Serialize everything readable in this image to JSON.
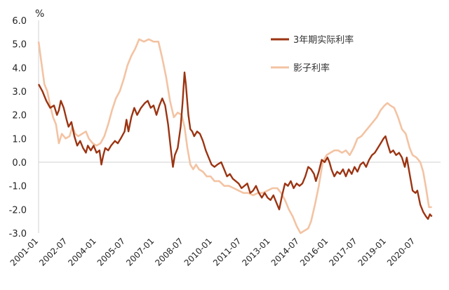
{
  "chart_data": {
    "type": "line",
    "y_unit": "%",
    "ylim": [
      -3.0,
      6.0
    ],
    "y_ticks": [
      "6.0",
      "5.0",
      "4.0",
      "3.0",
      "2.0",
      "1.0",
      "0.0",
      "-1.0",
      "-2.0",
      "-3.0"
    ],
    "y_tick_values": [
      6,
      5,
      4,
      3,
      2,
      1,
      0,
      -1,
      -2,
      -3
    ],
    "x_ticks": [
      "2001-01",
      "2002-07",
      "2004-01",
      "2005-07",
      "2007-01",
      "2008-07",
      "2010-01",
      "2011-07",
      "2013-01",
      "2014-07",
      "2016-01",
      "2017-07",
      "2019-01",
      "2020-07"
    ],
    "x_tick_values": [
      2001.0,
      2002.5,
      2004.0,
      2005.5,
      2007.0,
      2008.5,
      2010.0,
      2011.5,
      2013.0,
      2014.5,
      2016.0,
      2017.5,
      2019.0,
      2020.5
    ],
    "xlim": [
      2001.0,
      2021.8
    ],
    "grid": false,
    "legend_position": "top-right",
    "series": [
      {
        "name": "3年期实际利率",
        "color": "#9b3412",
        "points": [
          [
            2001.0,
            3.3
          ],
          [
            2001.2,
            3.0
          ],
          [
            2001.4,
            2.6
          ],
          [
            2001.6,
            2.3
          ],
          [
            2001.8,
            2.4
          ],
          [
            2001.95,
            2.0
          ],
          [
            2002.05,
            2.2
          ],
          [
            2002.15,
            2.6
          ],
          [
            2002.3,
            2.3
          ],
          [
            2002.45,
            1.8
          ],
          [
            2002.55,
            1.5
          ],
          [
            2002.7,
            1.7
          ],
          [
            2002.85,
            1.1
          ],
          [
            2003.0,
            0.7
          ],
          [
            2003.15,
            0.9
          ],
          [
            2003.3,
            0.6
          ],
          [
            2003.45,
            0.4
          ],
          [
            2003.55,
            0.7
          ],
          [
            2003.7,
            0.5
          ],
          [
            2003.85,
            0.7
          ],
          [
            2004.0,
            0.4
          ],
          [
            2004.15,
            0.5
          ],
          [
            2004.25,
            -0.1
          ],
          [
            2004.35,
            0.3
          ],
          [
            2004.45,
            0.6
          ],
          [
            2004.6,
            0.5
          ],
          [
            2004.75,
            0.7
          ],
          [
            2004.95,
            0.9
          ],
          [
            2005.1,
            0.8
          ],
          [
            2005.25,
            1.0
          ],
          [
            2005.45,
            1.3
          ],
          [
            2005.55,
            1.8
          ],
          [
            2005.65,
            1.3
          ],
          [
            2005.8,
            1.9
          ],
          [
            2005.95,
            2.3
          ],
          [
            2006.1,
            2.0
          ],
          [
            2006.3,
            2.3
          ],
          [
            2006.5,
            2.5
          ],
          [
            2006.65,
            2.6
          ],
          [
            2006.8,
            2.3
          ],
          [
            2006.95,
            2.4
          ],
          [
            2007.1,
            2.0
          ],
          [
            2007.25,
            2.4
          ],
          [
            2007.4,
            2.7
          ],
          [
            2007.55,
            2.4
          ],
          [
            2007.7,
            1.6
          ],
          [
            2007.85,
            0.5
          ],
          [
            2007.95,
            -0.2
          ],
          [
            2008.05,
            0.3
          ],
          [
            2008.2,
            0.6
          ],
          [
            2008.35,
            1.5
          ],
          [
            2008.45,
            2.5
          ],
          [
            2008.55,
            3.8
          ],
          [
            2008.62,
            3.3
          ],
          [
            2008.75,
            2.0
          ],
          [
            2008.85,
            1.4
          ],
          [
            2008.95,
            1.3
          ],
          [
            2009.05,
            1.1
          ],
          [
            2009.2,
            1.3
          ],
          [
            2009.35,
            1.2
          ],
          [
            2009.5,
            0.9
          ],
          [
            2009.65,
            0.5
          ],
          [
            2009.8,
            0.2
          ],
          [
            2009.95,
            -0.1
          ],
          [
            2010.1,
            -0.2
          ],
          [
            2010.25,
            -0.1
          ],
          [
            2010.45,
            0.0
          ],
          [
            2010.6,
            -0.3
          ],
          [
            2010.75,
            -0.6
          ],
          [
            2010.9,
            -0.5
          ],
          [
            2011.05,
            -0.7
          ],
          [
            2011.2,
            -0.8
          ],
          [
            2011.35,
            -0.9
          ],
          [
            2011.5,
            -1.1
          ],
          [
            2011.65,
            -1.0
          ],
          [
            2011.8,
            -0.9
          ],
          [
            2011.95,
            -1.3
          ],
          [
            2012.1,
            -1.2
          ],
          [
            2012.25,
            -1.0
          ],
          [
            2012.4,
            -1.3
          ],
          [
            2012.55,
            -1.5
          ],
          [
            2012.7,
            -1.3
          ],
          [
            2012.85,
            -1.5
          ],
          [
            2013.0,
            -1.6
          ],
          [
            2013.15,
            -1.4
          ],
          [
            2013.3,
            -1.7
          ],
          [
            2013.45,
            -2.0
          ],
          [
            2013.6,
            -1.4
          ],
          [
            2013.75,
            -0.9
          ],
          [
            2013.9,
            -1.0
          ],
          [
            2014.05,
            -0.8
          ],
          [
            2014.2,
            -1.1
          ],
          [
            2014.35,
            -0.9
          ],
          [
            2014.5,
            -1.0
          ],
          [
            2014.65,
            -0.9
          ],
          [
            2014.8,
            -0.6
          ],
          [
            2014.95,
            -0.2
          ],
          [
            2015.1,
            -0.3
          ],
          [
            2015.25,
            -0.5
          ],
          [
            2015.35,
            -0.8
          ],
          [
            2015.5,
            -0.4
          ],
          [
            2015.65,
            0.1
          ],
          [
            2015.8,
            0.0
          ],
          [
            2015.95,
            0.2
          ],
          [
            2016.05,
            0.0
          ],
          [
            2016.15,
            -0.3
          ],
          [
            2016.3,
            -0.6
          ],
          [
            2016.45,
            -0.4
          ],
          [
            2016.6,
            -0.5
          ],
          [
            2016.75,
            -0.3
          ],
          [
            2016.9,
            -0.6
          ],
          [
            2017.05,
            -0.3
          ],
          [
            2017.2,
            -0.5
          ],
          [
            2017.35,
            -0.2
          ],
          [
            2017.5,
            -0.4
          ],
          [
            2017.65,
            -0.1
          ],
          [
            2017.8,
            0.0
          ],
          [
            2017.95,
            -0.2
          ],
          [
            2018.1,
            0.1
          ],
          [
            2018.25,
            0.3
          ],
          [
            2018.4,
            0.4
          ],
          [
            2018.55,
            0.6
          ],
          [
            2018.7,
            0.8
          ],
          [
            2018.85,
            1.0
          ],
          [
            2018.95,
            1.1
          ],
          [
            2019.05,
            0.8
          ],
          [
            2019.2,
            0.4
          ],
          [
            2019.35,
            0.5
          ],
          [
            2019.5,
            0.3
          ],
          [
            2019.65,
            0.4
          ],
          [
            2019.8,
            0.2
          ],
          [
            2019.95,
            -0.2
          ],
          [
            2020.05,
            0.2
          ],
          [
            2020.2,
            -0.5
          ],
          [
            2020.35,
            -1.2
          ],
          [
            2020.5,
            -1.3
          ],
          [
            2020.6,
            -1.2
          ],
          [
            2020.75,
            -1.8
          ],
          [
            2020.9,
            -2.1
          ],
          [
            2021.05,
            -2.3
          ],
          [
            2021.15,
            -2.4
          ],
          [
            2021.25,
            -2.2
          ],
          [
            2021.35,
            -2.3
          ]
        ]
      },
      {
        "name": "影子利率",
        "color": "#f3c3a3",
        "points": [
          [
            2001.0,
            5.1
          ],
          [
            2001.15,
            4.2
          ],
          [
            2001.3,
            3.3
          ],
          [
            2001.45,
            3.0
          ],
          [
            2001.6,
            2.4
          ],
          [
            2001.75,
            1.9
          ],
          [
            2001.9,
            1.6
          ],
          [
            2002.05,
            0.8
          ],
          [
            2002.2,
            1.2
          ],
          [
            2002.4,
            1.0
          ],
          [
            2002.6,
            1.1
          ],
          [
            2002.75,
            1.5
          ],
          [
            2002.9,
            1.2
          ],
          [
            2003.05,
            1.1
          ],
          [
            2003.25,
            1.2
          ],
          [
            2003.45,
            1.3
          ],
          [
            2003.6,
            1.0
          ],
          [
            2003.8,
            0.8
          ],
          [
            2004.0,
            0.7
          ],
          [
            2004.2,
            0.8
          ],
          [
            2004.4,
            1.1
          ],
          [
            2004.6,
            1.6
          ],
          [
            2004.8,
            2.2
          ],
          [
            2005.0,
            2.7
          ],
          [
            2005.2,
            3.0
          ],
          [
            2005.4,
            3.5
          ],
          [
            2005.6,
            4.1
          ],
          [
            2005.8,
            4.5
          ],
          [
            2006.0,
            4.8
          ],
          [
            2006.2,
            5.2
          ],
          [
            2006.45,
            5.1
          ],
          [
            2006.7,
            5.2
          ],
          [
            2006.95,
            5.1
          ],
          [
            2007.2,
            5.1
          ],
          [
            2007.4,
            4.4
          ],
          [
            2007.6,
            3.6
          ],
          [
            2007.8,
            2.6
          ],
          [
            2008.0,
            1.9
          ],
          [
            2008.2,
            2.1
          ],
          [
            2008.4,
            2.0
          ],
          [
            2008.55,
            1.5
          ],
          [
            2008.7,
            0.6
          ],
          [
            2008.85,
            -0.1
          ],
          [
            2009.0,
            -0.3
          ],
          [
            2009.15,
            -0.1
          ],
          [
            2009.3,
            -0.3
          ],
          [
            2009.5,
            -0.4
          ],
          [
            2009.7,
            -0.6
          ],
          [
            2009.9,
            -0.6
          ],
          [
            2010.1,
            -0.8
          ],
          [
            2010.35,
            -0.8
          ],
          [
            2010.6,
            -1.0
          ],
          [
            2010.85,
            -1.0
          ],
          [
            2011.1,
            -1.1
          ],
          [
            2011.35,
            -1.2
          ],
          [
            2011.6,
            -1.3
          ],
          [
            2011.85,
            -1.3
          ],
          [
            2012.1,
            -1.4
          ],
          [
            2012.35,
            -1.3
          ],
          [
            2012.6,
            -1.3
          ],
          [
            2012.85,
            -1.2
          ],
          [
            2013.1,
            -1.1
          ],
          [
            2013.35,
            -1.1
          ],
          [
            2013.55,
            -1.3
          ],
          [
            2013.75,
            -1.6
          ],
          [
            2013.95,
            -2.0
          ],
          [
            2014.15,
            -2.3
          ],
          [
            2014.35,
            -2.7
          ],
          [
            2014.55,
            -3.0
          ],
          [
            2014.75,
            -2.9
          ],
          [
            2014.95,
            -2.8
          ],
          [
            2015.1,
            -2.5
          ],
          [
            2015.3,
            -1.8
          ],
          [
            2015.5,
            -1.0
          ],
          [
            2015.7,
            0.0
          ],
          [
            2015.9,
            0.3
          ],
          [
            2016.1,
            0.4
          ],
          [
            2016.3,
            0.5
          ],
          [
            2016.5,
            0.5
          ],
          [
            2016.7,
            0.4
          ],
          [
            2016.9,
            0.5
          ],
          [
            2017.1,
            0.3
          ],
          [
            2017.3,
            0.6
          ],
          [
            2017.5,
            1.0
          ],
          [
            2017.7,
            1.1
          ],
          [
            2017.9,
            1.3
          ],
          [
            2018.1,
            1.5
          ],
          [
            2018.3,
            1.7
          ],
          [
            2018.5,
            1.9
          ],
          [
            2018.7,
            2.2
          ],
          [
            2018.9,
            2.4
          ],
          [
            2019.05,
            2.5
          ],
          [
            2019.2,
            2.4
          ],
          [
            2019.4,
            2.3
          ],
          [
            2019.6,
            1.9
          ],
          [
            2019.8,
            1.4
          ],
          [
            2020.0,
            1.2
          ],
          [
            2020.2,
            0.6
          ],
          [
            2020.35,
            0.3
          ],
          [
            2020.55,
            0.2
          ],
          [
            2020.75,
            0.0
          ],
          [
            2020.9,
            -0.4
          ],
          [
            2021.05,
            -1.1
          ],
          [
            2021.2,
            -1.9
          ],
          [
            2021.35,
            -1.9
          ]
        ]
      }
    ]
  }
}
